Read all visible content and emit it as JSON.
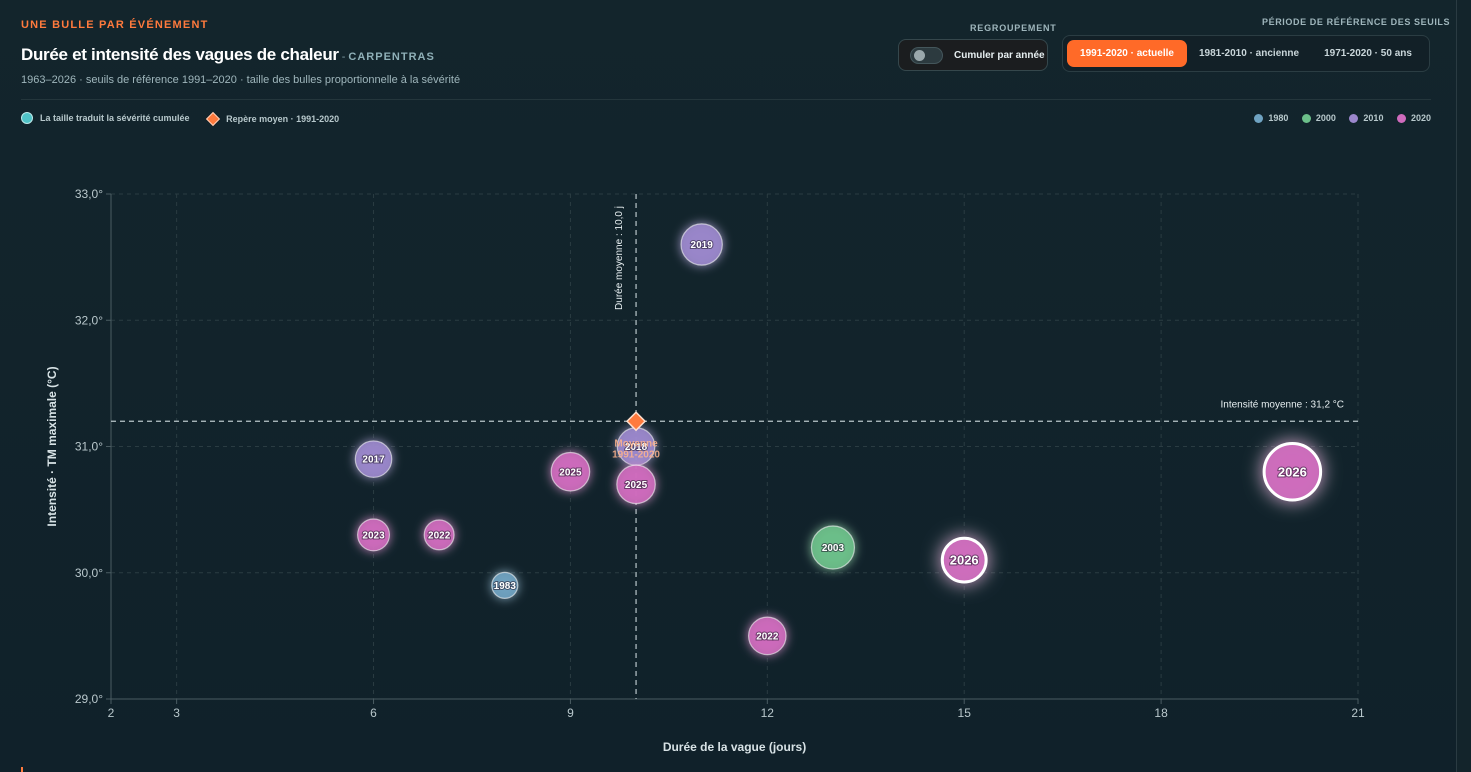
{
  "header": {
    "eyebrow": "UNE BULLE PAR ÉVÉNEMENT",
    "title": "Durée et intensité des vagues de chaleur",
    "title_separator": "-",
    "location": "CARPENTRAS",
    "subtitle": "1963–2026 · seuils de référence 1991–2020 · taille des bulles proportionnelle à la sévérité"
  },
  "controls": {
    "grouping_label": "REGROUPEMENT",
    "toggle_label": "Cumuler par année",
    "toggle_on": false,
    "period_label": "PÉRIODE DE RÉFÉRENCE DES SEUILS",
    "periods": [
      {
        "label": "1991-2020 · actuelle",
        "active": true
      },
      {
        "label": "1981-2010 · ancienne",
        "active": false
      },
      {
        "label": "1971-2020 · 50 ans",
        "active": false
      }
    ]
  },
  "legend": {
    "size_note": "La taille traduit la sévérité cumulée",
    "marker_note": "Repère moyen · 1991-2020",
    "decades": [
      {
        "label": "1980",
        "color": "#6fa3c2"
      },
      {
        "label": "2000",
        "color": "#6cc08a"
      },
      {
        "label": "2010",
        "color": "#9b87cc"
      },
      {
        "label": "2020",
        "color": "#cf6bbd"
      }
    ]
  },
  "chart_data": {
    "type": "scatter",
    "xlabel": "Durée de la vague (jours)",
    "ylabel": "Intensité · TM maximale (°C)",
    "xlim": [
      2,
      21
    ],
    "ylim": [
      29,
      33
    ],
    "xticks": [
      "2",
      "3",
      "6",
      "9",
      "12",
      "15",
      "18",
      "21"
    ],
    "yticks": [
      "29,0°",
      "30,0°",
      "31,0°",
      "32,0°",
      "33,0°"
    ],
    "grid": true,
    "mean_duration": 10,
    "mean_duration_label": "Durée moyenne : 10,0 j",
    "mean_intensity": 31.2,
    "mean_intensity_label": "Intensité moyenne : 31,2 °C",
    "mean_marker_label": [
      "Moyenne",
      "1991-2020"
    ],
    "points": [
      {
        "label": "1983",
        "x": 8,
        "y": 29.9,
        "severity": 1,
        "decade": "1980"
      },
      {
        "label": "2003",
        "x": 13,
        "y": 30.2,
        "severity": 4,
        "decade": "2000"
      },
      {
        "label": "2017",
        "x": 6,
        "y": 30.9,
        "severity": 2.6,
        "decade": "2010"
      },
      {
        "label": "2018",
        "x": 10,
        "y": 31.0,
        "severity": 2.8,
        "decade": "2010"
      },
      {
        "label": "2019",
        "x": 11,
        "y": 32.6,
        "severity": 3.6,
        "decade": "2010"
      },
      {
        "label": "2022",
        "x": 7,
        "y": 30.3,
        "severity": 1.5,
        "decade": "2020"
      },
      {
        "label": "2022",
        "x": 12,
        "y": 29.5,
        "severity": 2.8,
        "decade": "2020"
      },
      {
        "label": "2023",
        "x": 6,
        "y": 30.3,
        "severity": 1.8,
        "decade": "2020"
      },
      {
        "label": "2025",
        "x": 9,
        "y": 30.8,
        "severity": 3,
        "decade": "2020"
      },
      {
        "label": "2025",
        "x": 10,
        "y": 30.7,
        "severity": 3,
        "decade": "2020"
      },
      {
        "label": "2026",
        "x": 15,
        "y": 30.1,
        "severity": 4.2,
        "decade": "2020",
        "highlight": true
      },
      {
        "label": "2026",
        "x": 20,
        "y": 30.8,
        "severity": 7.8,
        "decade": "2020",
        "highlight": true
      }
    ]
  }
}
